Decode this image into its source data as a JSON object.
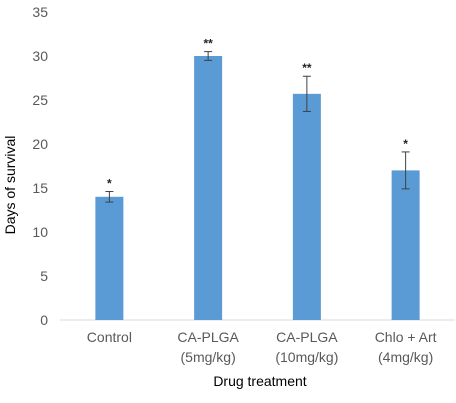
{
  "chart_data": {
    "type": "bar",
    "title": "",
    "xlabel": "Drug treatment",
    "ylabel": "Days of survival",
    "ylim": [
      0,
      35
    ],
    "yticks": [
      0,
      5,
      10,
      15,
      20,
      25,
      30,
      35
    ],
    "grid": false,
    "legend": "none",
    "bar_color": "#5b9bd5",
    "categories": [
      [
        "Control"
      ],
      [
        "CA-PLGA",
        "(5mg/kg)"
      ],
      [
        "CA-PLGA",
        "(10mg/kg)"
      ],
      [
        "Chlo + Art",
        "(4mg/kg)"
      ]
    ],
    "values": [
      14,
      30,
      25.7,
      17
    ],
    "error": [
      0.6,
      0.5,
      2.0,
      2.1
    ],
    "annotations": [
      "*",
      "**",
      "**",
      "*"
    ]
  }
}
